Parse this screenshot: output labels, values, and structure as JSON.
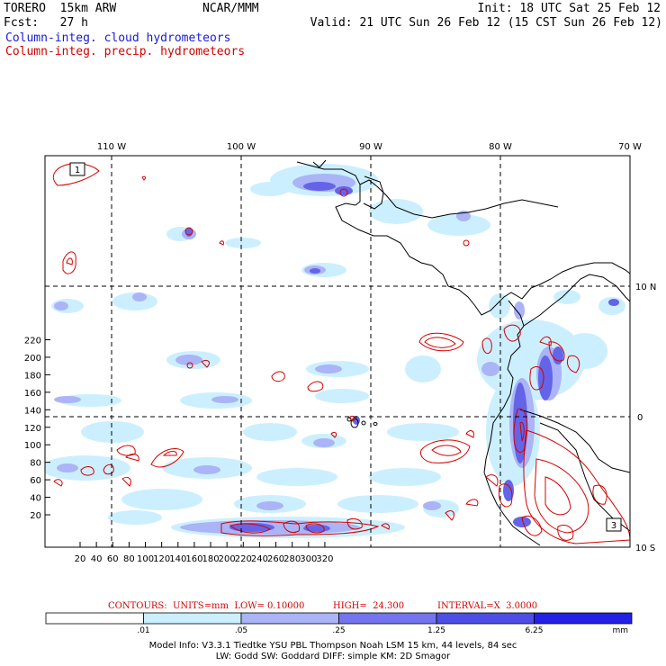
{
  "header": {
    "model": "TORERO  15km ARW",
    "org": "NCAR/MMM",
    "init": "Init: 18 UTC Sat 25 Feb 12",
    "fcst": "Fcst:   27 h",
    "valid": "Valid: 21 UTC Sun 26 Feb 12 (15 CST Sun 26 Feb 12)",
    "legend_cloud": "Column-integ. cloud hydrometeors",
    "legend_precip": "Column-integ. precip. hydrometeors"
  },
  "map": {
    "lon_labels": [
      "110 W",
      "100 W",
      "90 W",
      "80 W",
      "70 W"
    ],
    "lat_labels": [
      "10 N",
      "0",
      "10 S"
    ],
    "y_ticks": [
      "220",
      "200",
      "180",
      "160",
      "140",
      "120",
      "100",
      "80",
      "60",
      "40",
      "20"
    ],
    "x_ticks": [
      "20",
      "40",
      "60",
      "80",
      "100",
      "120",
      "140",
      "160",
      "180",
      "200",
      "220",
      "240",
      "260",
      "280",
      "300",
      "320"
    ],
    "box_labels": [
      "1",
      "3"
    ]
  },
  "contour_info": {
    "contours": "CONTOURS:  UNITS=mm  LOW= 0.10000",
    "high": "HIGH=  24.300",
    "interval": "INTERVAL=X  3.0000"
  },
  "colorbar": {
    "labels": [
      ".01",
      ".05",
      ".25",
      "1.25",
      "6.25",
      "mm"
    ],
    "colors": [
      "#ffffff",
      "#ccefff",
      "#aab4f6",
      "#7474ee",
      "#4e4ee6",
      "#2222e6"
    ]
  },
  "footer": {
    "line1": "Model Info: V3.3.1   Tiedtke YSU PBL  Thompson    Noah LSM  15 km,   44 levels,   84 sec",
    "line2": "LW: Godd SW: Goddard DIFF: simple KM: 2D Smagor"
  }
}
